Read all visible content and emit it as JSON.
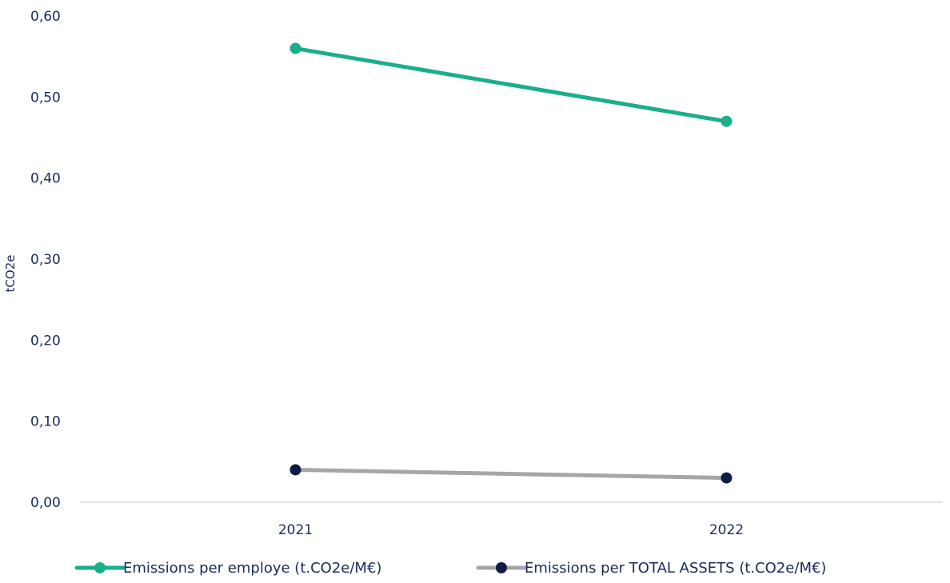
{
  "chart_data": {
    "type": "line",
    "categories": [
      "2021",
      "2022"
    ],
    "series": [
      {
        "name": "Emissions per employe (t.CO2e/M€)",
        "values": [
          0.56,
          0.47
        ],
        "line_color": "#1aaf8b",
        "marker_color": "#1aaf8b"
      },
      {
        "name": "Emissions per TOTAL ASSETS (t.CO2e/M€)",
        "values": [
          0.04,
          0.03
        ],
        "line_color": "#a6a6a6",
        "marker_color": "#0d1b45"
      }
    ],
    "ylabel": "tCO2e",
    "xlabel": "",
    "ylim": [
      0,
      0.6
    ],
    "yticks": [
      "0,00",
      "0,10",
      "0,20",
      "0,30",
      "0,40",
      "0,50",
      "0,60"
    ],
    "grid": false,
    "legend_position": "bottom"
  }
}
